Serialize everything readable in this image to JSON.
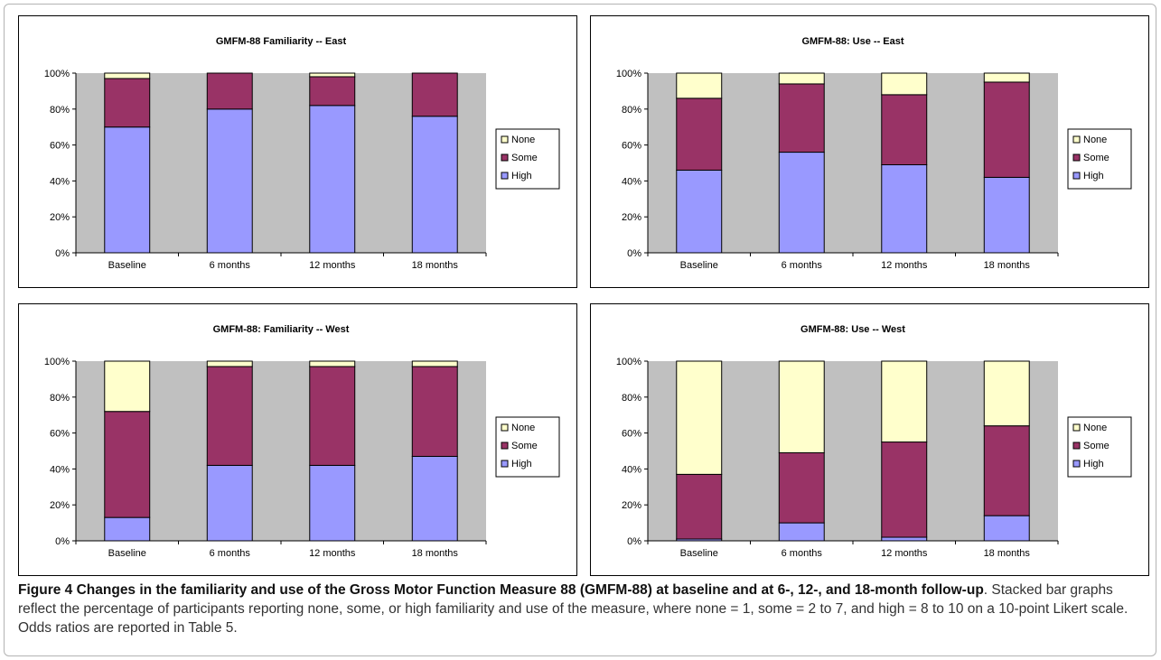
{
  "figure": {
    "caption_bold": "Figure 4 Changes in the familiarity and use of the Gross Motor Function Measure 88 (GMFM-88) at baseline and at 6-, 12-, and 18-month follow-up",
    "caption_text": ". Stacked bar graphs reflect the percentage of participants reporting none, some, or high familiarity and use of the measure, where none = 1, some = 2 to 7, and high = 8 to 10 on a 10-point Likert scale. Odds ratios are reported in Table 5."
  },
  "chart_data": [
    {
      "type": "bar",
      "stacked": true,
      "title": "GMFM-88 Familiarity -- East",
      "categories": [
        "Baseline",
        "6 months",
        "12 months",
        "18 months"
      ],
      "yticks": [
        "0%",
        "20%",
        "40%",
        "60%",
        "80%",
        "100%"
      ],
      "ylim": [
        0,
        100
      ],
      "legend_position": "right",
      "series": [
        {
          "name": "High",
          "color": "#9999ff",
          "values": [
            70,
            80,
            82,
            76
          ]
        },
        {
          "name": "Some",
          "color": "#993366",
          "values": [
            27,
            20,
            16,
            24
          ]
        },
        {
          "name": "None",
          "color": "#ffffcc",
          "values": [
            3,
            0,
            2,
            0
          ]
        }
      ]
    },
    {
      "type": "bar",
      "stacked": true,
      "title": "GMFM-88: Use -- East",
      "categories": [
        "Baseline",
        "6 months",
        "12 months",
        "18 months"
      ],
      "yticks": [
        "0%",
        "20%",
        "40%",
        "60%",
        "80%",
        "100%"
      ],
      "ylim": [
        0,
        100
      ],
      "legend_position": "right",
      "series": [
        {
          "name": "High",
          "color": "#9999ff",
          "values": [
            46,
            56,
            49,
            42
          ]
        },
        {
          "name": "Some",
          "color": "#993366",
          "values": [
            40,
            38,
            39,
            53
          ]
        },
        {
          "name": "None",
          "color": "#ffffcc",
          "values": [
            14,
            6,
            12,
            5
          ]
        }
      ]
    },
    {
      "type": "bar",
      "stacked": true,
      "title": "GMFM-88: Familiarity -- West",
      "categories": [
        "Baseline",
        "6 months",
        "12 months",
        "18 months"
      ],
      "yticks": [
        "0%",
        "20%",
        "40%",
        "60%",
        "80%",
        "100%"
      ],
      "ylim": [
        0,
        100
      ],
      "legend_position": "right",
      "series": [
        {
          "name": "High",
          "color": "#9999ff",
          "values": [
            13,
            42,
            42,
            47
          ]
        },
        {
          "name": "Some",
          "color": "#993366",
          "values": [
            59,
            55,
            55,
            50
          ]
        },
        {
          "name": "None",
          "color": "#ffffcc",
          "values": [
            28,
            3,
            3,
            3
          ]
        }
      ]
    },
    {
      "type": "bar",
      "stacked": true,
      "title": "GMFM-88: Use -- West",
      "categories": [
        "Baseline",
        "6 months",
        "12 months",
        "18 months"
      ],
      "yticks": [
        "0%",
        "20%",
        "40%",
        "60%",
        "80%",
        "100%"
      ],
      "ylim": [
        0,
        100
      ],
      "legend_position": "right",
      "series": [
        {
          "name": "High",
          "color": "#9999ff",
          "values": [
            1,
            10,
            2,
            14
          ]
        },
        {
          "name": "Some",
          "color": "#993366",
          "values": [
            36,
            39,
            53,
            50
          ]
        },
        {
          "name": "None",
          "color": "#ffffcc",
          "values": [
            63,
            51,
            45,
            36
          ]
        }
      ]
    }
  ]
}
